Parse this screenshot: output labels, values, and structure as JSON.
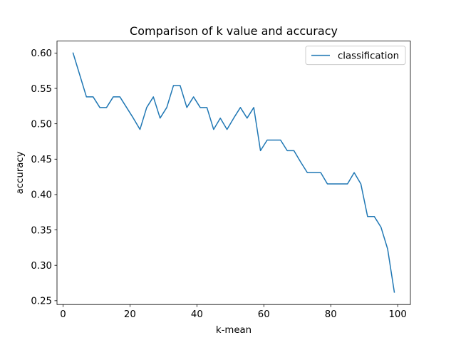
{
  "chart_data": {
    "type": "line",
    "title": "Comparison of k value and accuracy",
    "xlabel": "k-mean",
    "ylabel": "accuracy",
    "xlim": [
      -1.8,
      103.8
    ],
    "ylim": [
      0.2446,
      0.6169
    ],
    "xticks": [
      0,
      20,
      40,
      60,
      80,
      100
    ],
    "xtick_labels": [
      "0",
      "20",
      "40",
      "60",
      "80",
      "100"
    ],
    "yticks": [
      0.25,
      0.3,
      0.35,
      0.4,
      0.45,
      0.5,
      0.55,
      0.6
    ],
    "ytick_labels": [
      "0.25",
      "0.30",
      "0.35",
      "0.40",
      "0.45",
      "0.50",
      "0.55",
      "0.60"
    ],
    "grid": false,
    "legend_position": "top-right",
    "series": [
      {
        "name": "classification",
        "color": "#1f77b4",
        "x": [
          3,
          5,
          7,
          9,
          11,
          13,
          15,
          17,
          19,
          21,
          23,
          25,
          27,
          29,
          31,
          33,
          35,
          37,
          39,
          41,
          43,
          45,
          47,
          49,
          51,
          53,
          55,
          57,
          59,
          61,
          63,
          65,
          67,
          69,
          71,
          73,
          75,
          77,
          79,
          81,
          83,
          85,
          87,
          89,
          91,
          93,
          95,
          97,
          99
        ],
        "y": [
          0.6,
          0.569,
          0.538,
          0.538,
          0.523,
          0.523,
          0.538,
          0.538,
          0.523,
          0.508,
          0.492,
          0.523,
          0.538,
          0.508,
          0.523,
          0.554,
          0.554,
          0.523,
          0.538,
          0.523,
          0.523,
          0.492,
          0.508,
          0.492,
          0.508,
          0.523,
          0.508,
          0.523,
          0.462,
          0.477,
          0.477,
          0.477,
          0.462,
          0.462,
          0.446,
          0.431,
          0.431,
          0.431,
          0.415,
          0.415,
          0.415,
          0.415,
          0.431,
          0.415,
          0.369,
          0.369,
          0.354,
          0.323,
          0.262
        ]
      }
    ]
  }
}
